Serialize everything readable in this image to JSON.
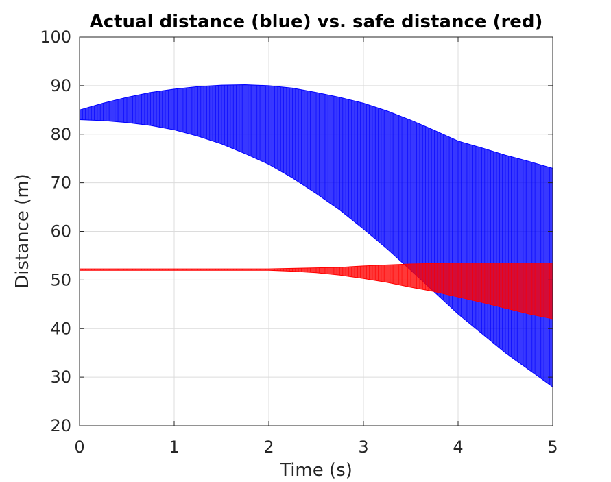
{
  "chart_data": {
    "type": "area",
    "title": "Actual distance (blue) vs. safe distance (red)",
    "xlabel": "Time (s)",
    "ylabel": "Distance (m)",
    "xlim": [
      0,
      5
    ],
    "ylim": [
      20,
      100
    ],
    "xticks": [
      "0",
      "1",
      "2",
      "3",
      "4",
      "5"
    ],
    "yticks": [
      "20",
      "30",
      "40",
      "50",
      "60",
      "70",
      "80",
      "90",
      "100"
    ],
    "grid": true,
    "box": true,
    "series": [
      {
        "color": "#0000ff",
        "x": [
          0,
          0.25,
          0.5,
          0.75,
          1,
          1.25,
          1.5,
          1.75,
          2,
          2.25,
          2.5,
          2.75,
          3,
          3.25,
          3.5,
          3.75,
          4,
          4.25,
          4.5,
          4.75,
          5
        ],
        "upper": [
          85.0,
          86.4,
          87.6,
          88.6,
          89.3,
          89.8,
          90.1,
          90.2,
          90.0,
          89.5,
          88.6,
          87.6,
          86.4,
          84.8,
          82.9,
          80.8,
          78.6,
          77.2,
          75.7,
          74.4,
          73.0
        ],
        "lower": [
          83.0,
          82.8,
          82.4,
          81.8,
          80.9,
          79.6,
          78.0,
          76.0,
          73.8,
          71.0,
          67.8,
          64.4,
          60.5,
          56.4,
          52.0,
          47.5,
          43.0,
          39.0,
          35.0,
          31.5,
          28.0
        ]
      },
      {
        "color": "#ff0000",
        "x": [
          0,
          0.25,
          0.5,
          0.75,
          1,
          1.25,
          1.5,
          1.75,
          2,
          2.25,
          2.5,
          2.75,
          3,
          3.25,
          3.5,
          3.75,
          4,
          4.25,
          4.5,
          4.75,
          5
        ],
        "upper": [
          52.3,
          52.3,
          52.3,
          52.3,
          52.3,
          52.3,
          52.3,
          52.3,
          52.3,
          52.4,
          52.5,
          52.6,
          52.9,
          53.1,
          53.3,
          53.4,
          53.5,
          53.5,
          53.5,
          53.5,
          53.5
        ],
        "lower": [
          52.0,
          52.0,
          52.0,
          52.0,
          52.0,
          52.0,
          52.0,
          52.0,
          52.0,
          51.8,
          51.5,
          51.0,
          50.3,
          49.5,
          48.5,
          47.6,
          46.5,
          45.4,
          44.2,
          43.0,
          42.0
        ]
      }
    ]
  }
}
